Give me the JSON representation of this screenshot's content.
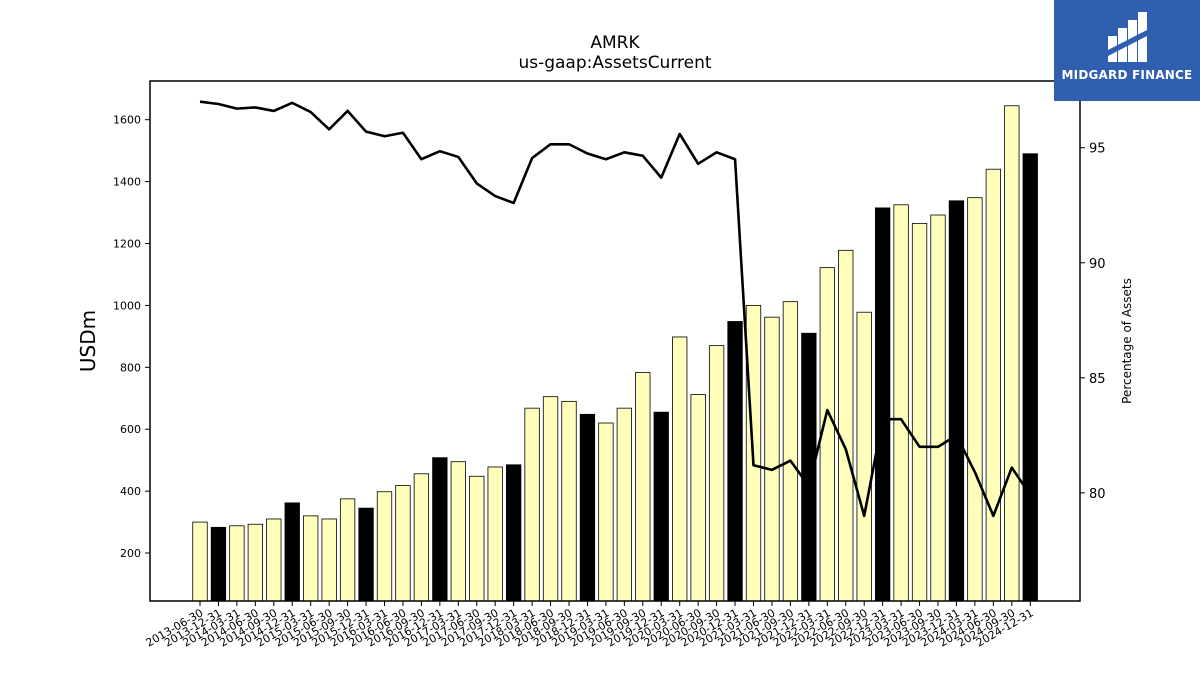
{
  "chart_data": {
    "type": "bar",
    "title": "AMRK",
    "subtitle": "us-gaap:AssetsCurrent",
    "ylabel": "USDm",
    "y2label": "Percentage of Assets",
    "ylim": [
      45,
      1725
    ],
    "y2lim": [
      75.3,
      97.9
    ],
    "yticks": [
      200,
      400,
      600,
      800,
      1000,
      1200,
      1400,
      1600
    ],
    "y2ticks": [
      80,
      85,
      90,
      95
    ],
    "grid": false,
    "categories": [
      "2013-06-30",
      "2013-12-31",
      "2014-03-31",
      "2014-06-30",
      "2014-09-30",
      "2014-12-31",
      "2015-03-31",
      "2015-06-30",
      "2015-09-30",
      "2015-12-31",
      "2016-03-31",
      "2016-06-30",
      "2016-09-30",
      "2016-12-31",
      "2017-03-31",
      "2017-06-30",
      "2017-09-30",
      "2017-12-31",
      "2018-03-31",
      "2018-06-30",
      "2018-09-30",
      "2018-12-31",
      "2019-03-31",
      "2019-06-30",
      "2019-09-30",
      "2019-12-31",
      "2020-03-31",
      "2020-06-30",
      "2020-09-30",
      "2020-12-31",
      "2021-03-31",
      "2021-06-30",
      "2021-09-30",
      "2021-12-31",
      "2022-03-31",
      "2022-06-30",
      "2022-09-30",
      "2022-12-31",
      "2023-03-31",
      "2023-06-30",
      "2023-09-30",
      "2023-12-31",
      "2024-03-31",
      "2024-06-30",
      "2024-09-30",
      "2024-12-31"
    ],
    "series": [
      {
        "kind": "bar",
        "values": [
          300,
          283,
          288,
          293,
          310,
          362,
          320,
          310,
          375,
          345,
          398,
          418,
          456,
          508,
          495,
          448,
          478,
          485,
          668,
          705,
          690,
          648,
          620,
          668,
          783,
          655,
          898,
          712,
          870,
          948,
          1000,
          962,
          1012,
          910,
          1122,
          1178,
          978,
          1315,
          1325,
          1265,
          1292,
          1338,
          1348,
          1440,
          1645,
          1490
        ],
        "fiscal_year_end": [
          false,
          true,
          false,
          false,
          false,
          true,
          false,
          false,
          false,
          true,
          false,
          false,
          false,
          true,
          false,
          false,
          false,
          true,
          false,
          false,
          false,
          true,
          false,
          false,
          false,
          true,
          false,
          false,
          false,
          true,
          false,
          false,
          false,
          true,
          false,
          false,
          false,
          true,
          false,
          false,
          false,
          true,
          false,
          false,
          false,
          true
        ],
        "color": "#ffffbb",
        "highlight_color": "#000000"
      },
      {
        "kind": "line",
        "axis": "right",
        "values": [
          97.0,
          96.9,
          96.7,
          96.75,
          96.6,
          96.95,
          96.55,
          95.8,
          96.6,
          95.7,
          95.5,
          95.65,
          94.5,
          94.85,
          94.6,
          93.45,
          92.9,
          92.6,
          94.55,
          95.15,
          95.15,
          94.75,
          94.5,
          94.8,
          94.65,
          93.7,
          95.6,
          94.3,
          94.8,
          94.5,
          81.2,
          81.0,
          81.4,
          80.3,
          83.6,
          81.9,
          79.0,
          83.2,
          83.2,
          82.0,
          82.0,
          82.5,
          80.9,
          79.0,
          81.1,
          79.9
        ],
        "color": "#000000"
      }
    ]
  },
  "branding": {
    "logo_text": "MIDGARD FINANCE"
  }
}
